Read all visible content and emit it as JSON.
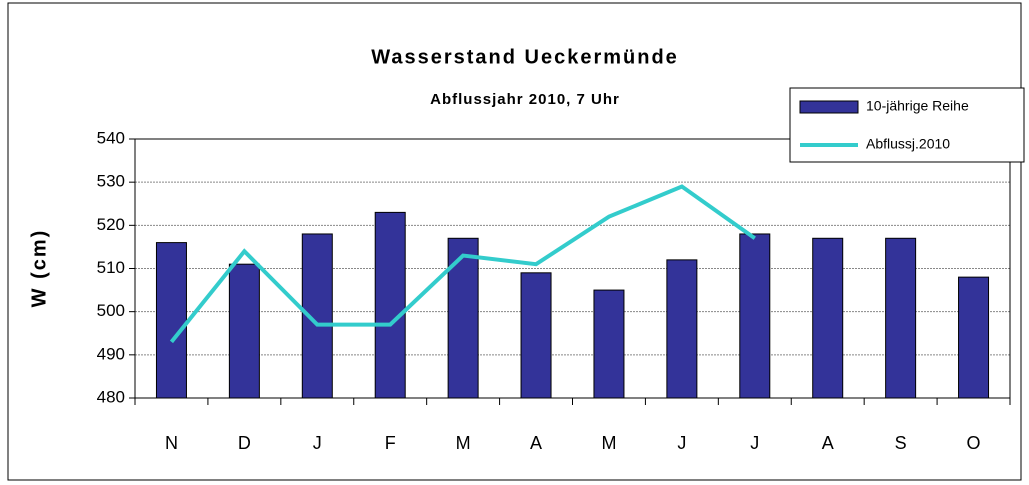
{
  "chart_data": {
    "type": "bar",
    "title": "Wasserstand Ueckermünde",
    "subtitle": "Abflussjahr 2010, 7 Uhr",
    "y_label": "W (cm)",
    "categories": [
      "N",
      "D",
      "J",
      "F",
      "M",
      "A",
      "M",
      "J",
      "J",
      "A",
      "S",
      "O"
    ],
    "series": [
      {
        "name": "10-jährige Reihe",
        "type": "bar",
        "color": "#333399",
        "values": [
          516,
          511,
          518,
          523,
          517,
          509,
          505,
          512,
          518,
          517,
          517,
          508
        ]
      },
      {
        "name": "Abflussj.2010",
        "type": "line",
        "color": "#33CCCC",
        "values": [
          493,
          514,
          497,
          497,
          513,
          511,
          522,
          529,
          517,
          null,
          null,
          null
        ]
      }
    ],
    "ylim": [
      480,
      540
    ],
    "yticks": [
      480,
      490,
      500,
      510,
      520,
      530,
      540
    ],
    "grid": true,
    "legend": "top-right"
  }
}
